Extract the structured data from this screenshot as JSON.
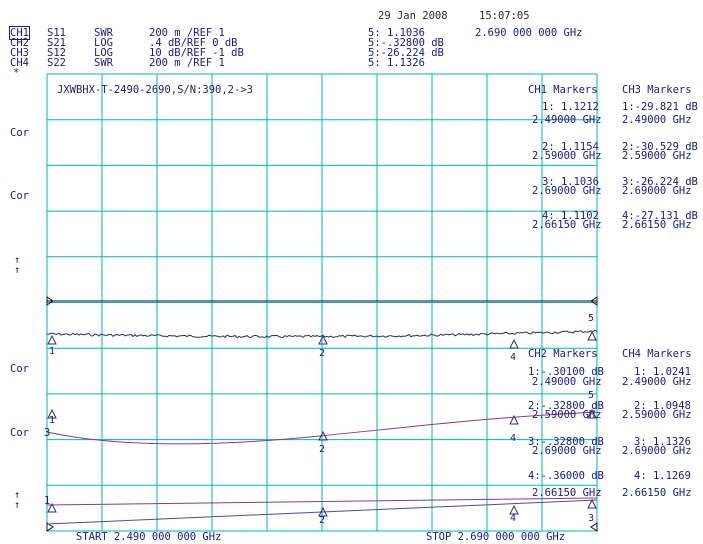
{
  "header": {
    "date": "29 Jan 2008",
    "time": "15:07:05",
    "channels": [
      {
        "ch": "CH1",
        "param": "S11",
        "format": "SWR",
        "scale": "200 m /REF 1",
        "marker": "5: 1.1036"
      },
      {
        "ch": "CH2",
        "param": "S21",
        "format": "LOG",
        "scale": ".4 dB/REF 0 dB",
        "marker": "5:-.32800 dB"
      },
      {
        "ch": "CH3",
        "param": "S12",
        "format": "LOG",
        "scale": "10 dB/REF -1 dB",
        "marker": "5:-26.224 dB"
      },
      {
        "ch": "CH4",
        "param": "S22",
        "format": "SWR",
        "scale": "200 m /REF 1",
        "marker": "5: 1.1326"
      }
    ],
    "marker_freq": "2.690 000 000 GHz",
    "star": "*"
  },
  "upper_panel": {
    "title": "JXWBHX-T-2490-2690,S/N:390,2->3",
    "cor_labels": [
      "Cor",
      "Cor"
    ],
    "arrows": [
      "↑",
      "↑"
    ],
    "ch1_markers": {
      "heading": "CH1 Markers",
      "items": [
        {
          "value": "1: 1.1212",
          "freq": "2.49000 GHz"
        },
        {
          "value": "2: 1.1154",
          "freq": "2.59000 GHz"
        },
        {
          "value": "3: 1.1036",
          "freq": "2.69000 GHz"
        },
        {
          "value": "4: 1.1102",
          "freq": "2.66150 GHz"
        }
      ]
    },
    "ch3_markers": {
      "heading": "CH3 Markers",
      "items": [
        {
          "value": "1:-29.821 dB",
          "freq": "2.49000 GHz"
        },
        {
          "value": "2:-30.529 dB",
          "freq": "2.59000 GHz"
        },
        {
          "value": "3:-26.224 dB",
          "freq": "2.69000 GHz"
        },
        {
          "value": "4:-27.131 dB",
          "freq": "2.66150 GHz"
        }
      ]
    }
  },
  "lower_panel": {
    "cor_labels": [
      "Cor",
      "Cor"
    ],
    "ref_marks": [
      "3",
      "1"
    ],
    "arrows": [
      "↑",
      "↑"
    ],
    "ch2_markers": {
      "heading": "CH2 Markers",
      "items": [
        {
          "value": "1:-.30100 dB",
          "freq": "2.49000 GHz"
        },
        {
          "value": "2:-.32800 dB",
          "freq": "2.59000 GHz"
        },
        {
          "value": "3:-.32800 dB",
          "freq": "2.69000 GHz"
        },
        {
          "value": "4:-.36000 dB",
          "freq": "2.66150 GHz"
        }
      ]
    },
    "ch4_markers": {
      "heading": "CH4 Markers",
      "items": [
        {
          "value": "1: 1.0241",
          "freq": "2.49000 GHz"
        },
        {
          "value": "2: 1.0948",
          "freq": "2.59000 GHz"
        },
        {
          "value": "3: 1.1326",
          "freq": "2.69000 GHz"
        },
        {
          "value": "4: 1.1269",
          "freq": "2.66150 GHz"
        }
      ]
    }
  },
  "footer": {
    "start": "START 2.490 000 000 GHz",
    "stop": "STOP 2.690 000 000 GHz"
  },
  "marker_numbers": [
    "1",
    "2",
    "3",
    "4",
    "5"
  ],
  "colors": {
    "grid": "#00b4c8",
    "trace1": "#2a2a6a",
    "trace2": "#8a3a8a",
    "trace3": "#4a4ab0",
    "text": "#1a1a8c",
    "refline": "#111111"
  }
}
